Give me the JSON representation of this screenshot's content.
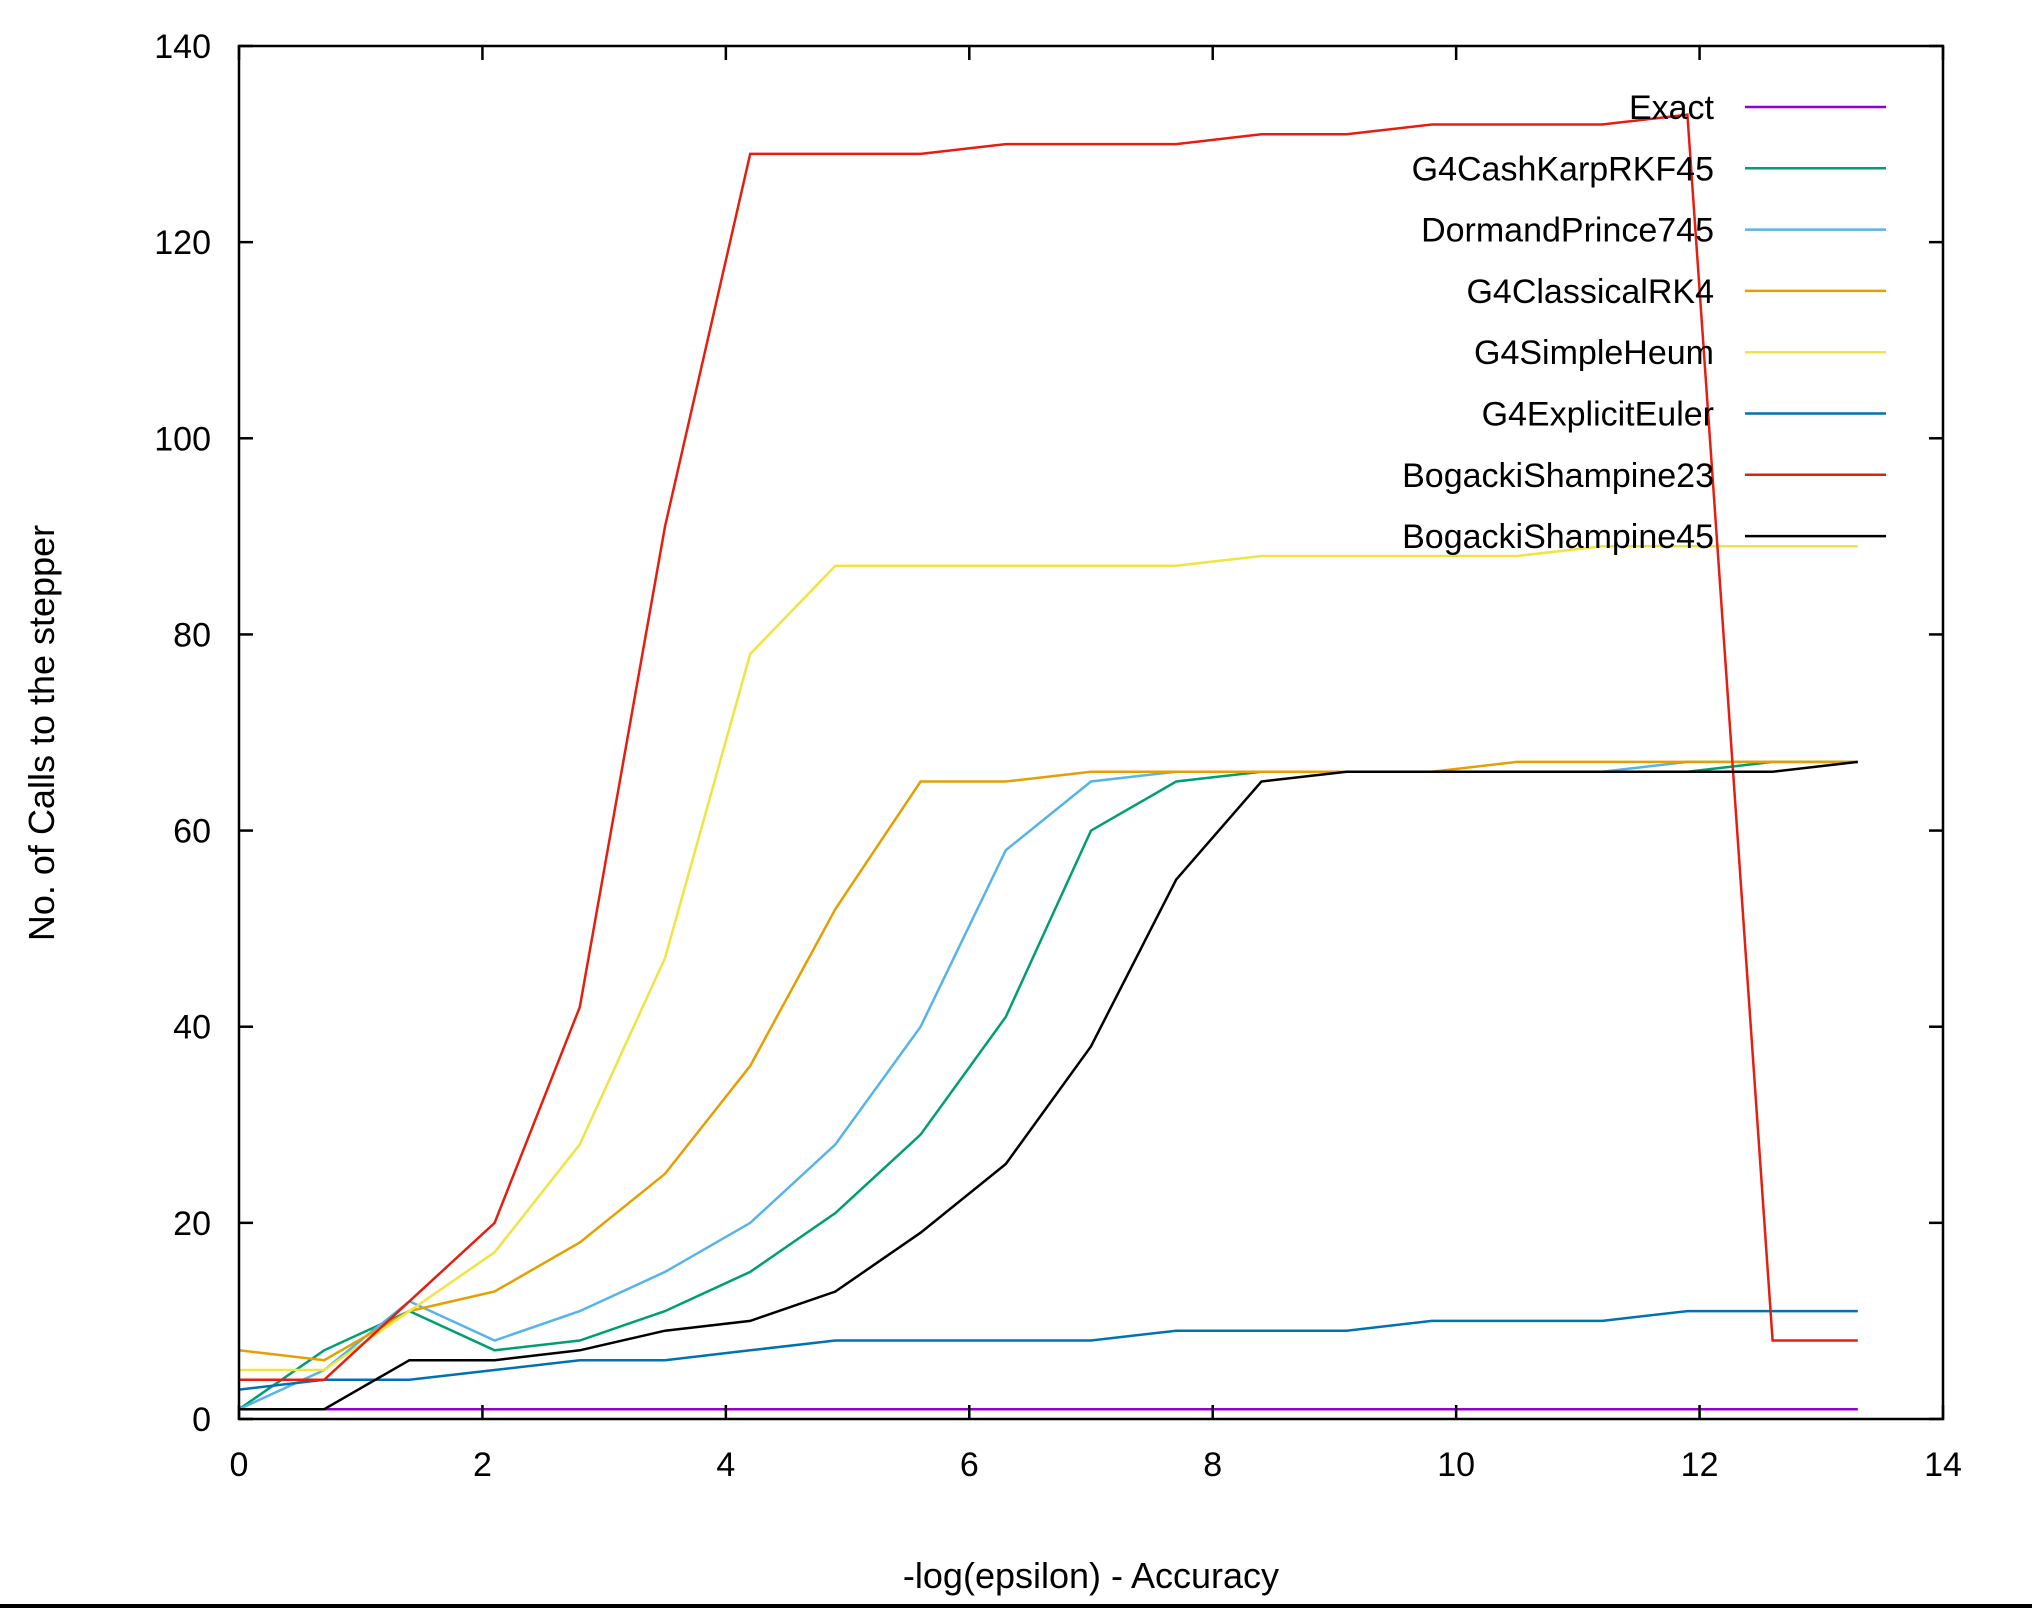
{
  "chart_data": {
    "type": "line",
    "title": "",
    "xlabel": "-log(epsilon) - Accuracy",
    "ylabel": "No. of Calls to the stepper",
    "xlim": [
      0,
      14
    ],
    "ylim": [
      0,
      140
    ],
    "xticks": [
      0,
      2,
      4,
      6,
      8,
      10,
      12,
      14
    ],
    "yticks": [
      0,
      20,
      40,
      60,
      80,
      100,
      120,
      140
    ],
    "grid": false,
    "legend_position": "top-right",
    "x": [
      0,
      0.7,
      1.4,
      2.1,
      2.8,
      3.5,
      4.2,
      4.9,
      5.6,
      6.3,
      7.0,
      7.7,
      8.4,
      9.1,
      9.8,
      10.5,
      11.2,
      11.9,
      12.6,
      13.3
    ],
    "series": [
      {
        "name": "Exact",
        "color": "#9400d3",
        "values": [
          1,
          1,
          1,
          1,
          1,
          1,
          1,
          1,
          1,
          1,
          1,
          1,
          1,
          1,
          1,
          1,
          1,
          1,
          1,
          1
        ]
      },
      {
        "name": "G4CashKarpRKF45",
        "color": "#009e73",
        "values": [
          1,
          7,
          11,
          7,
          8,
          11,
          15,
          21,
          29,
          41,
          60,
          65,
          66,
          66,
          66,
          66,
          66,
          66,
          67,
          67
        ]
      },
      {
        "name": "DormandPrince745",
        "color": "#56b4e9",
        "values": [
          1,
          5,
          12,
          8,
          11,
          15,
          20,
          28,
          40,
          58,
          65,
          66,
          66,
          66,
          66,
          66,
          66,
          67,
          67,
          67
        ]
      },
      {
        "name": "G4ClassicalRK4",
        "color": "#e69f00",
        "values": [
          7,
          6,
          11,
          13,
          18,
          25,
          36,
          52,
          65,
          65,
          66,
          66,
          66,
          66,
          66,
          67,
          67,
          67,
          67,
          67
        ]
      },
      {
        "name": "G4SimpleHeum",
        "color": "#f0e442",
        "values": [
          5,
          5,
          11,
          17,
          28,
          47,
          78,
          87,
          87,
          87,
          87,
          87,
          88,
          88,
          88,
          88,
          89,
          89,
          89,
          89
        ]
      },
      {
        "name": "G4ExplicitEuler",
        "color": "#0072b2",
        "values": [
          3,
          4,
          4,
          5,
          6,
          6,
          7,
          8,
          8,
          8,
          8,
          9,
          9,
          9,
          10,
          10,
          10,
          11,
          11,
          11
        ]
      },
      {
        "name": "BogackiShampine23",
        "color": "#e51e10",
        "values": [
          4,
          4,
          12,
          20,
          42,
          91,
          129,
          129,
          129,
          130,
          130,
          130,
          131,
          131,
          132,
          132,
          132,
          133,
          8,
          8
        ]
      },
      {
        "name": "BogackiShampine45",
        "color": "#000000",
        "values": [
          1,
          1,
          6,
          6,
          7,
          9,
          10,
          13,
          19,
          26,
          38,
          55,
          65,
          66,
          66,
          66,
          66,
          66,
          66,
          67
        ]
      }
    ]
  }
}
